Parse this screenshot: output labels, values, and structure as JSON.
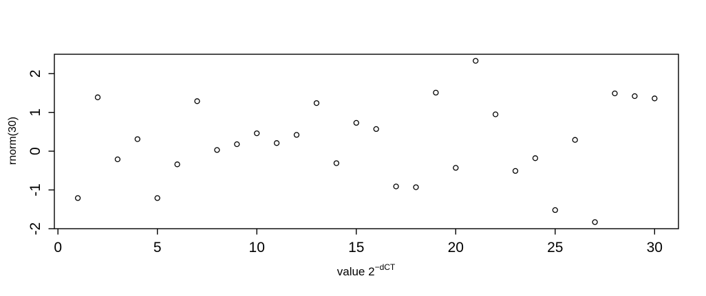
{
  "figure": {
    "background": "#ffffff"
  },
  "chart_data": {
    "type": "scatter",
    "title": "",
    "xlabel_base": "value 2",
    "xlabel_superscript": "−dCT",
    "ylabel": "rnorm(30)",
    "x_ticks": [
      0,
      5,
      10,
      15,
      20,
      25,
      30
    ],
    "y_ticks": [
      -2,
      -1,
      0,
      1,
      2
    ],
    "xlim": [
      -0.18,
      31.2
    ],
    "ylim": [
      -2.0,
      2.5
    ],
    "grid": false,
    "legend_position": "none",
    "marker": "open-circle",
    "marker_color": "#000000",
    "axis_color": "#000000",
    "x": [
      1,
      2,
      3,
      4,
      5,
      6,
      7,
      8,
      9,
      10,
      11,
      12,
      13,
      14,
      15,
      16,
      17,
      18,
      19,
      20,
      21,
      22,
      23,
      24,
      25,
      26,
      27,
      28,
      29,
      30
    ],
    "y": [
      -1.21,
      1.39,
      -0.21,
      0.31,
      -1.21,
      -0.34,
      1.29,
      0.03,
      0.18,
      0.46,
      0.21,
      0.42,
      1.24,
      -0.31,
      0.73,
      0.57,
      -0.91,
      -0.93,
      1.51,
      -0.43,
      2.33,
      0.95,
      -0.51,
      -0.18,
      -1.52,
      0.29,
      -1.83,
      1.49,
      1.42,
      1.36
    ]
  }
}
